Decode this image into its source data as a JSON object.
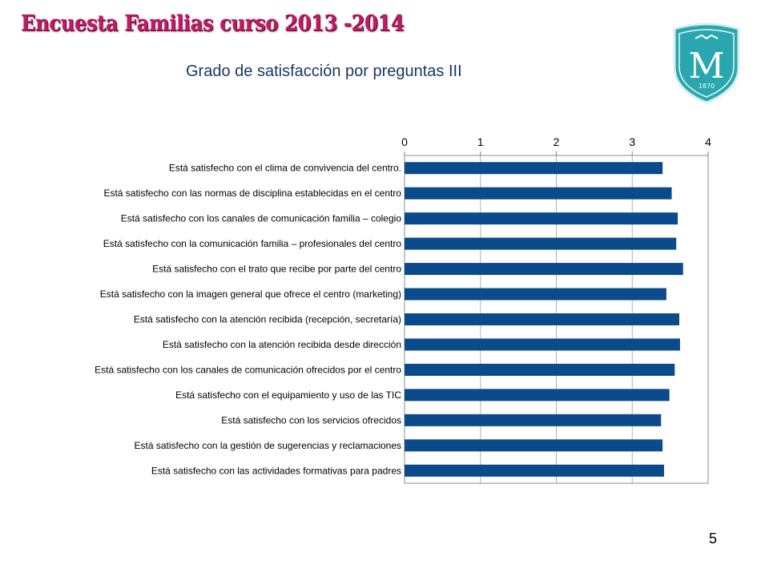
{
  "header": {
    "title": "Encuesta Familias curso 2013 -2014",
    "logo_letter": "M",
    "logo_year": "1870"
  },
  "slide": {
    "subtitle": "Grado de satisfacción por preguntas III",
    "page_number": "5"
  },
  "colors": {
    "bar": "#0b4a8b",
    "title": "#c21a66",
    "subtitle": "#17375e",
    "logo": "#2aa7ae"
  },
  "chart_data": {
    "type": "bar",
    "orientation": "horizontal",
    "title": "Grado de satisfacción por preguntas III",
    "xlabel": "",
    "ylabel": "",
    "xlim": [
      0,
      4
    ],
    "ticks": [
      0,
      1,
      2,
      3,
      4
    ],
    "tick_position": "top",
    "grid": "vertical",
    "legend": "none",
    "categories": [
      "Está satisfecho con el clima de convivencia del centro.",
      "Está satisfecho con las normas de disciplina establecidas en el centro",
      "Está satisfecho con los canales de comunicación familia – colegio",
      "Está satisfecho con la comunicación familia – profesionales  del centro",
      "Está satisfecho con el trato que recibe por parte del centro",
      "Está satisfecho con la imagen general que ofrece el centro (marketing)",
      "Está satisfecho con la atención recibida (recepción, secretaría)",
      "Está satisfecho con la atención recibida desde dirección",
      "Está satisfecho con los canales de comunicación ofrecidos por el centro",
      "Está satisfecho con el equipamiento y uso de las TIC",
      "Está satisfecho con los servicios ofrecidos",
      "Está satisfecho con la gestión de sugerencias y reclamaciones",
      "Está satisfecho con las actividades formativas para padres"
    ],
    "values": [
      3.4,
      3.52,
      3.6,
      3.58,
      3.67,
      3.45,
      3.62,
      3.63,
      3.56,
      3.49,
      3.38,
      3.4,
      3.42
    ]
  }
}
